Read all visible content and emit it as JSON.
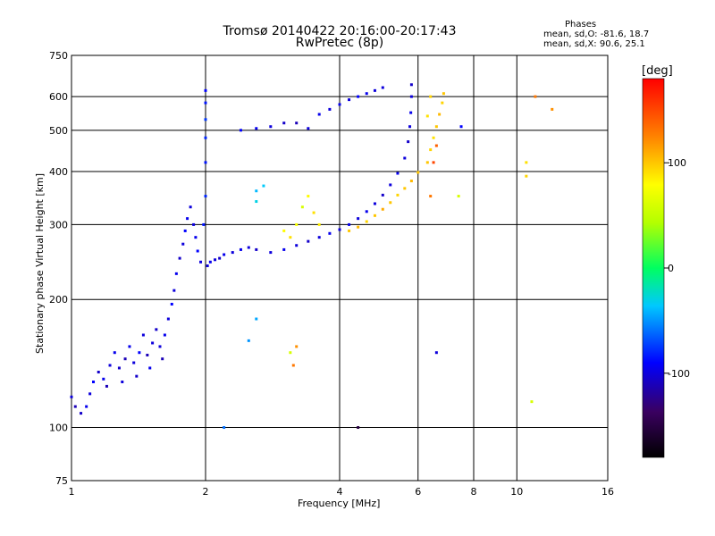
{
  "chart_data": {
    "type": "scatter",
    "title": "Tromsø 20140422 20:16:00-20:17:43",
    "subtitle": "RwPretec (8p)",
    "xlabel": "Frequency [MHz]",
    "ylabel": "Stationary phase Virtual Height [km]",
    "x_scale": "log",
    "y_scale": "log",
    "xlim": [
      1,
      16
    ],
    "ylim": [
      75,
      750
    ],
    "x_ticks": [
      1,
      2,
      4,
      6,
      8,
      10,
      16
    ],
    "x_tick_labels": [
      "1",
      "2",
      "4",
      "6",
      "8",
      "10",
      "16"
    ],
    "y_ticks": [
      75,
      100,
      200,
      300,
      400,
      500,
      600,
      750
    ],
    "y_tick_labels": [
      "75",
      "100",
      "200",
      "300",
      "400",
      "500",
      "600",
      "750"
    ],
    "grid": true,
    "stats": {
      "heading": "Phases",
      "line1": "mean, sd,O: -81.6, 18.7",
      "line2": "mean, sd,X:  90.6, 25.1"
    },
    "colorbar": {
      "label": "[deg]",
      "range": [
        -180,
        180
      ],
      "ticks": [
        100,
        0,
        -100
      ],
      "tick_labels": [
        "100",
        "0",
        "-100"
      ]
    },
    "series": [
      {
        "points": [
          [
            1.0,
            118,
            -100
          ],
          [
            1.02,
            112,
            -110
          ],
          [
            1.05,
            108,
            -105
          ],
          [
            1.08,
            112,
            -95
          ],
          [
            1.1,
            120,
            -100
          ],
          [
            1.12,
            128,
            -90
          ],
          [
            1.15,
            135,
            -105
          ],
          [
            1.18,
            130,
            -95
          ],
          [
            1.2,
            125,
            -110
          ],
          [
            1.22,
            140,
            -100
          ],
          [
            1.25,
            150,
            -95
          ],
          [
            1.28,
            138,
            -105
          ],
          [
            1.3,
            128,
            -100
          ],
          [
            1.32,
            145,
            -110
          ],
          [
            1.35,
            155,
            -95
          ],
          [
            1.38,
            142,
            -100
          ],
          [
            1.4,
            132,
            -105
          ],
          [
            1.42,
            150,
            -90
          ],
          [
            1.45,
            165,
            -100
          ],
          [
            1.48,
            148,
            -110
          ],
          [
            1.5,
            138,
            -95
          ],
          [
            1.52,
            158,
            -100
          ],
          [
            1.55,
            170,
            -105
          ],
          [
            1.58,
            155,
            -100
          ],
          [
            1.6,
            145,
            -110
          ],
          [
            1.62,
            165,
            -95
          ],
          [
            1.65,
            180,
            -100
          ],
          [
            1.68,
            195,
            -90
          ],
          [
            1.7,
            210,
            -100
          ],
          [
            1.72,
            230,
            -95
          ],
          [
            1.75,
            250,
            -105
          ],
          [
            1.78,
            270,
            -100
          ],
          [
            1.8,
            290,
            -90
          ],
          [
            1.82,
            310,
            -95
          ],
          [
            1.85,
            330,
            -100
          ],
          [
            1.88,
            300,
            -100
          ],
          [
            1.9,
            280,
            -95
          ],
          [
            1.92,
            260,
            -90
          ],
          [
            1.95,
            245,
            -100
          ],
          [
            1.98,
            300,
            -85
          ],
          [
            2.0,
            350,
            -80
          ],
          [
            2.0,
            420,
            -85
          ],
          [
            2.0,
            480,
            -80
          ],
          [
            2.0,
            530,
            -75
          ],
          [
            2.0,
            580,
            -85
          ],
          [
            2.0,
            620,
            -90
          ],
          [
            2.02,
            240,
            -100
          ],
          [
            2.05,
            245,
            -95
          ],
          [
            2.1,
            248,
            -100
          ],
          [
            2.15,
            250,
            -105
          ],
          [
            2.2,
            255,
            -95
          ],
          [
            2.3,
            258,
            -100
          ],
          [
            2.4,
            262,
            -95
          ],
          [
            2.5,
            265,
            -100
          ],
          [
            2.6,
            262,
            -105
          ],
          [
            2.8,
            258,
            -100
          ],
          [
            3.0,
            262,
            -95
          ],
          [
            3.2,
            268,
            -100
          ],
          [
            3.4,
            274,
            -105
          ],
          [
            3.6,
            280,
            -100
          ],
          [
            3.8,
            286,
            -95
          ],
          [
            4.0,
            292,
            -100
          ],
          [
            4.2,
            300,
            -95
          ],
          [
            4.4,
            310,
            -100
          ],
          [
            4.6,
            322,
            -95
          ],
          [
            4.8,
            336,
            -100
          ],
          [
            5.0,
            352,
            -105
          ],
          [
            5.2,
            372,
            -100
          ],
          [
            5.4,
            396,
            -95
          ],
          [
            5.6,
            430,
            -100
          ],
          [
            5.7,
            470,
            -105
          ],
          [
            5.75,
            510,
            -100
          ],
          [
            5.78,
            550,
            -95
          ],
          [
            5.8,
            600,
            -100
          ],
          [
            5.8,
            640,
            -105
          ],
          [
            2.4,
            500,
            -90
          ],
          [
            2.6,
            505,
            -95
          ],
          [
            2.8,
            510,
            -100
          ],
          [
            3.0,
            520,
            -105
          ],
          [
            3.2,
            520,
            -110
          ],
          [
            3.4,
            505,
            -100
          ],
          [
            3.6,
            545,
            -95
          ],
          [
            3.8,
            560,
            -100
          ],
          [
            4.0,
            575,
            -95
          ],
          [
            4.2,
            590,
            -100
          ],
          [
            4.4,
            600,
            -90
          ],
          [
            4.6,
            610,
            -95
          ],
          [
            4.8,
            620,
            -100
          ],
          [
            5.0,
            630,
            -100
          ],
          [
            4.2,
            290,
            100
          ],
          [
            4.4,
            296,
            105
          ],
          [
            4.6,
            305,
            95
          ],
          [
            4.8,
            315,
            100
          ],
          [
            5.0,
            326,
            110
          ],
          [
            5.2,
            338,
            100
          ],
          [
            5.4,
            352,
            95
          ],
          [
            5.6,
            365,
            100
          ],
          [
            5.8,
            380,
            105
          ],
          [
            6.0,
            398,
            100
          ],
          [
            6.3,
            420,
            100
          ],
          [
            6.4,
            450,
            95
          ],
          [
            6.5,
            480,
            90
          ],
          [
            6.6,
            510,
            100
          ],
          [
            6.7,
            545,
            105
          ],
          [
            6.8,
            580,
            95
          ],
          [
            6.85,
            610,
            100
          ],
          [
            6.3,
            540,
            90
          ],
          [
            6.4,
            600,
            95
          ],
          [
            3.0,
            290,
            80
          ],
          [
            3.1,
            280,
            90
          ],
          [
            3.2,
            300,
            75
          ],
          [
            3.3,
            330,
            60
          ],
          [
            3.4,
            350,
            80
          ],
          [
            3.5,
            320,
            90
          ],
          [
            3.6,
            300,
            85
          ],
          [
            6.4,
            350,
            130
          ],
          [
            6.5,
            420,
            150
          ],
          [
            6.6,
            460,
            140
          ],
          [
            2.6,
            360,
            -40
          ],
          [
            2.6,
            340,
            -30
          ],
          [
            2.7,
            370,
            -35
          ],
          [
            2.5,
            160,
            -50
          ],
          [
            2.6,
            180,
            -45
          ],
          [
            3.1,
            150,
            60
          ],
          [
            3.15,
            140,
            130
          ],
          [
            3.2,
            155,
            120
          ],
          [
            2.2,
            100,
            -60
          ],
          [
            6.6,
            150,
            -100
          ],
          [
            10.5,
            420,
            90
          ],
          [
            10.5,
            390,
            95
          ],
          [
            11.0,
            600,
            130
          ],
          [
            7.5,
            510,
            -90
          ],
          [
            7.4,
            350,
            60
          ],
          [
            12.0,
            560,
            120
          ],
          [
            10.8,
            115,
            60
          ],
          [
            4.4,
            100,
            -150
          ]
        ]
      }
    ]
  }
}
